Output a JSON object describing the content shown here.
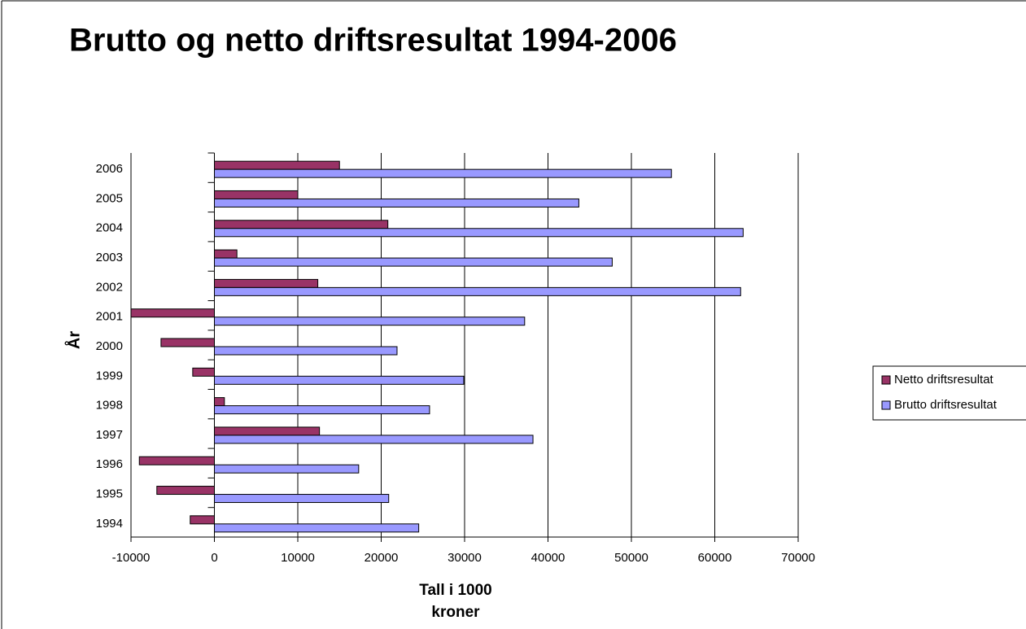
{
  "chart_data": {
    "type": "bar",
    "orientation": "horizontal",
    "title": "Brutto og netto driftsresultat 1994-2006",
    "x_label": "Tall i 1000 kroner",
    "y_label": "År",
    "categories": [
      "1994",
      "1995",
      "1996",
      "1997",
      "1998",
      "1999",
      "2000",
      "2001",
      "2002",
      "2003",
      "2004",
      "2005",
      "2006"
    ],
    "series": [
      {
        "name": "Netto driftsresultat",
        "color": "#993366",
        "values": [
          -2900,
          -6900,
          -9000,
          12600,
          1200,
          -2600,
          -6400,
          -10000,
          12400,
          2700,
          20800,
          10000,
          15000
        ]
      },
      {
        "name": "Brutto driftsresultat",
        "color": "#9999ff",
        "values": [
          24500,
          20900,
          17300,
          38200,
          25800,
          29900,
          21900,
          37200,
          63100,
          47700,
          63400,
          43700,
          54800
        ]
      }
    ],
    "xlim": [
      -10000,
      70000
    ],
    "xticks": [
      -10000,
      0,
      10000,
      20000,
      30000,
      40000,
      50000,
      60000,
      70000
    ],
    "grid": true,
    "legend": "right"
  }
}
